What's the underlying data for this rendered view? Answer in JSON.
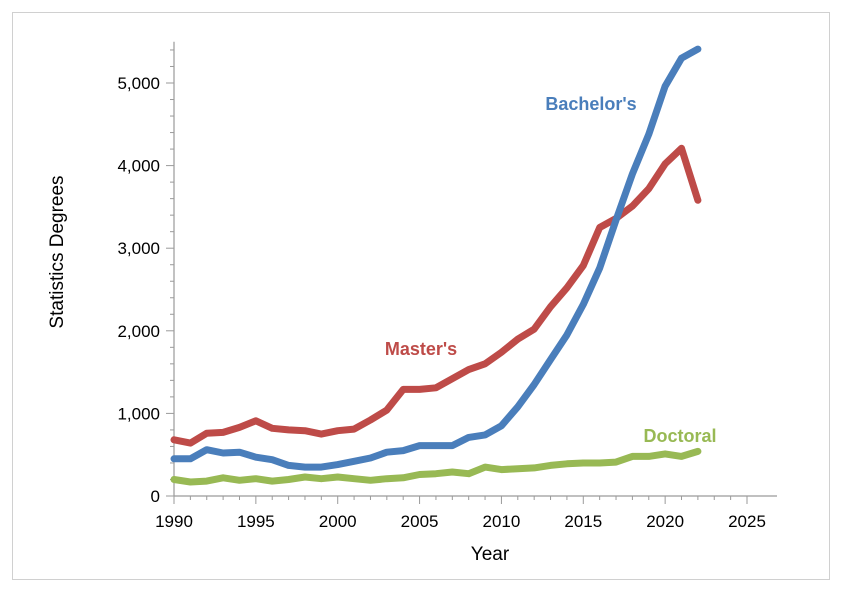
{
  "chart_data": {
    "type": "line",
    "title": "",
    "xlabel": "Year",
    "ylabel": "Statistics Degrees",
    "xlim": [
      1990,
      2025
    ],
    "ylim": [
      0,
      5500
    ],
    "xticks": [
      "1990",
      "1995",
      "2000",
      "2005",
      "2010",
      "2015",
      "2020",
      "2025"
    ],
    "yticks": [
      "0",
      "1,000",
      "2,000",
      "3,000",
      "4,000",
      "5,000"
    ],
    "grid": false,
    "legend": "inline labels",
    "series": [
      {
        "name": "Bachelor's",
        "color": "#4a7ebb",
        "x": [
          1990,
          1991,
          1992,
          1993,
          1994,
          1995,
          1996,
          1997,
          1998,
          1999,
          2000,
          2001,
          2002,
          2003,
          2004,
          2005,
          2006,
          2007,
          2008,
          2009,
          2010,
          2011,
          2012,
          2013,
          2014,
          2015,
          2016,
          2017,
          2018,
          2019,
          2020,
          2021,
          2022
        ],
        "values": [
          450,
          450,
          560,
          520,
          530,
          470,
          440,
          370,
          350,
          350,
          380,
          420,
          460,
          530,
          550,
          610,
          610,
          610,
          710,
          740,
          850,
          1080,
          1350,
          1650,
          1950,
          2320,
          2760,
          3340,
          3900,
          4380,
          4960,
          5300,
          5410
        ]
      },
      {
        "name": "Master's",
        "color": "#be4b48",
        "x": [
          1990,
          1991,
          1992,
          1993,
          1994,
          1995,
          1996,
          1997,
          1998,
          1999,
          2000,
          2001,
          2002,
          2003,
          2004,
          2005,
          2006,
          2007,
          2008,
          2009,
          2010,
          2011,
          2012,
          2013,
          2014,
          2015,
          2016,
          2017,
          2018,
          2019,
          2020,
          2021,
          2022
        ],
        "values": [
          680,
          640,
          760,
          770,
          830,
          910,
          820,
          800,
          790,
          750,
          790,
          810,
          920,
          1040,
          1290,
          1290,
          1310,
          1420,
          1530,
          1600,
          1740,
          1900,
          2020,
          2290,
          2520,
          2790,
          3250,
          3360,
          3510,
          3720,
          4020,
          4210,
          3580
        ]
      },
      {
        "name": "Doctoral",
        "color": "#98b954",
        "x": [
          1990,
          1991,
          1992,
          1993,
          1994,
          1995,
          1996,
          1997,
          1998,
          1999,
          2000,
          2001,
          2002,
          2003,
          2004,
          2005,
          2006,
          2007,
          2008,
          2009,
          2010,
          2011,
          2012,
          2013,
          2014,
          2015,
          2016,
          2017,
          2018,
          2019,
          2020,
          2021,
          2022
        ],
        "values": [
          200,
          170,
          180,
          220,
          190,
          210,
          180,
          200,
          230,
          210,
          230,
          210,
          190,
          210,
          220,
          260,
          270,
          290,
          270,
          350,
          320,
          330,
          340,
          370,
          390,
          400,
          400,
          410,
          480,
          480,
          510,
          480,
          540
        ]
      }
    ]
  }
}
